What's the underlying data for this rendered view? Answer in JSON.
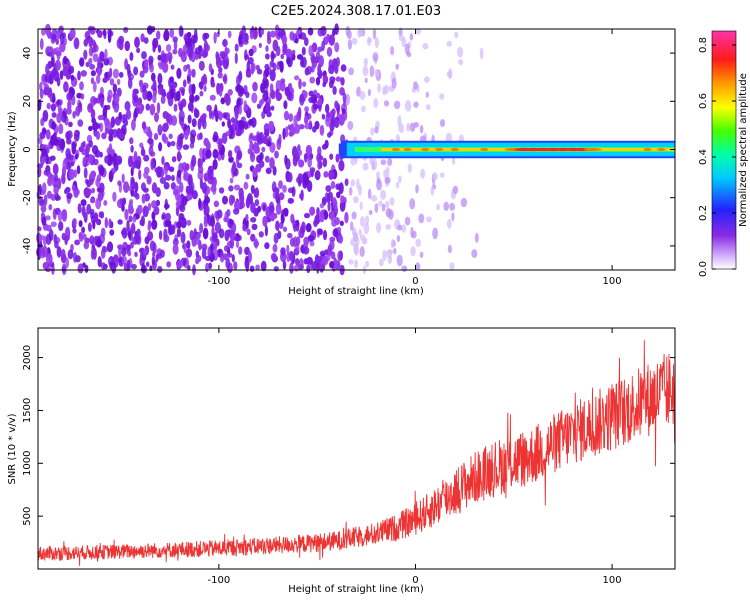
{
  "title": "C2E5.2024.308.17.01.E03",
  "colors": {
    "snr_series": "#ee3333",
    "noise_points": "#8a2be2",
    "frame": "#000000",
    "background": "#ffffff"
  },
  "chart_data": [
    {
      "type": "heatmap",
      "name": "spectrogram",
      "xlabel": "Height of straight line (km)",
      "ylabel": "Frequency (Hz)",
      "xlim": [
        -192,
        132
      ],
      "ylim": [
        -50,
        50
      ],
      "xticks": [
        -100,
        0,
        100
      ],
      "xtick_labels": [
        "-100",
        "0",
        "100"
      ],
      "yticks": [
        -40,
        -20,
        0,
        20,
        40
      ],
      "ytick_labels": [
        "-40",
        "-20",
        "0",
        "20",
        "40"
      ],
      "signal_band": {
        "start_x": -38,
        "end_x": 132,
        "center_frequency": 0,
        "half_width_hz": 3,
        "description": "narrow band near 0 Hz with amplitude up to ~0.8 between 40 and 100 km"
      },
      "noise_region": {
        "x_from": -192,
        "x_to": 10,
        "fade_from": -35,
        "fade_to": 20,
        "sparse_extend_to": 35
      },
      "colorbar": {
        "label": "Normalized spectral amplitude",
        "range": [
          0.0,
          0.85
        ],
        "ticks": [
          0.0,
          0.2,
          0.4,
          0.6,
          0.8
        ],
        "tick_labels": [
          "0.0",
          "0.2",
          "0.4",
          "0.6",
          "0.8"
        ],
        "colormap": "rainbow (violet-blue-cyan-green-yellow-orange-red-magenta)"
      }
    },
    {
      "type": "line",
      "name": "snr",
      "xlabel": "Height of straight line (km)",
      "ylabel": "SNR (10 * v/v)",
      "xlim": [
        -192,
        132
      ],
      "ylim": [
        0,
        2280
      ],
      "xticks": [
        -100,
        0,
        100
      ],
      "xtick_labels": [
        "-100",
        "0",
        "100"
      ],
      "yticks": [
        500,
        1000,
        1500,
        2000
      ],
      "ytick_labels": [
        "500",
        "1000",
        "1500",
        "2000"
      ],
      "series": [
        {
          "name": "SNR",
          "x": [
            -192,
            -150,
            -100,
            -60,
            -40,
            -20,
            -10,
            0,
            10,
            20,
            30,
            40,
            60,
            80,
            100,
            120,
            132
          ],
          "center": [
            145,
            165,
            195,
            235,
            265,
            335,
            390,
            470,
            590,
            730,
            860,
            950,
            1080,
            1280,
            1440,
            1620,
            1720
          ],
          "spread": [
            70,
            70,
            80,
            85,
            95,
            110,
            130,
            150,
            190,
            230,
            250,
            270,
            280,
            300,
            330,
            360,
            380
          ]
        }
      ]
    }
  ]
}
